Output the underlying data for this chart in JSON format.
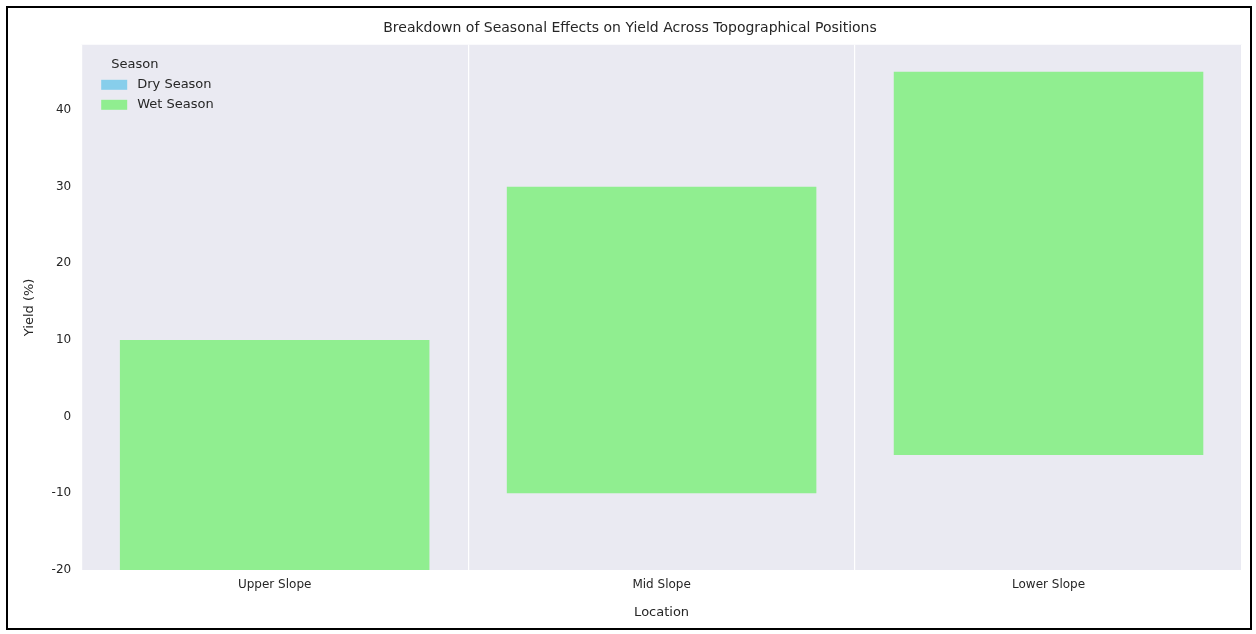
{
  "chart_data": {
    "type": "bar",
    "title": "Breakdown of Seasonal Effects on Yield Across Topographical Positions",
    "xlabel": "Location",
    "ylabel": "Yield (%)",
    "legend_title": "Season",
    "categories": [
      "Upper Slope",
      "Mid Slope",
      "Lower Slope"
    ],
    "series": [
      {
        "name": "Dry Season",
        "color": "#87ceeb",
        "values": [
          null,
          null,
          null
        ]
      },
      {
        "name": "Wet Season",
        "color": "#90ee90",
        "values": [
          30,
          40,
          50
        ],
        "base": [
          -20,
          -10,
          -5
        ]
      }
    ],
    "ylim": [
      -20,
      48.5
    ],
    "yticks": [
      -20,
      -10,
      0,
      10,
      20,
      30,
      40
    ],
    "grid": "x",
    "legend": "top left"
  }
}
